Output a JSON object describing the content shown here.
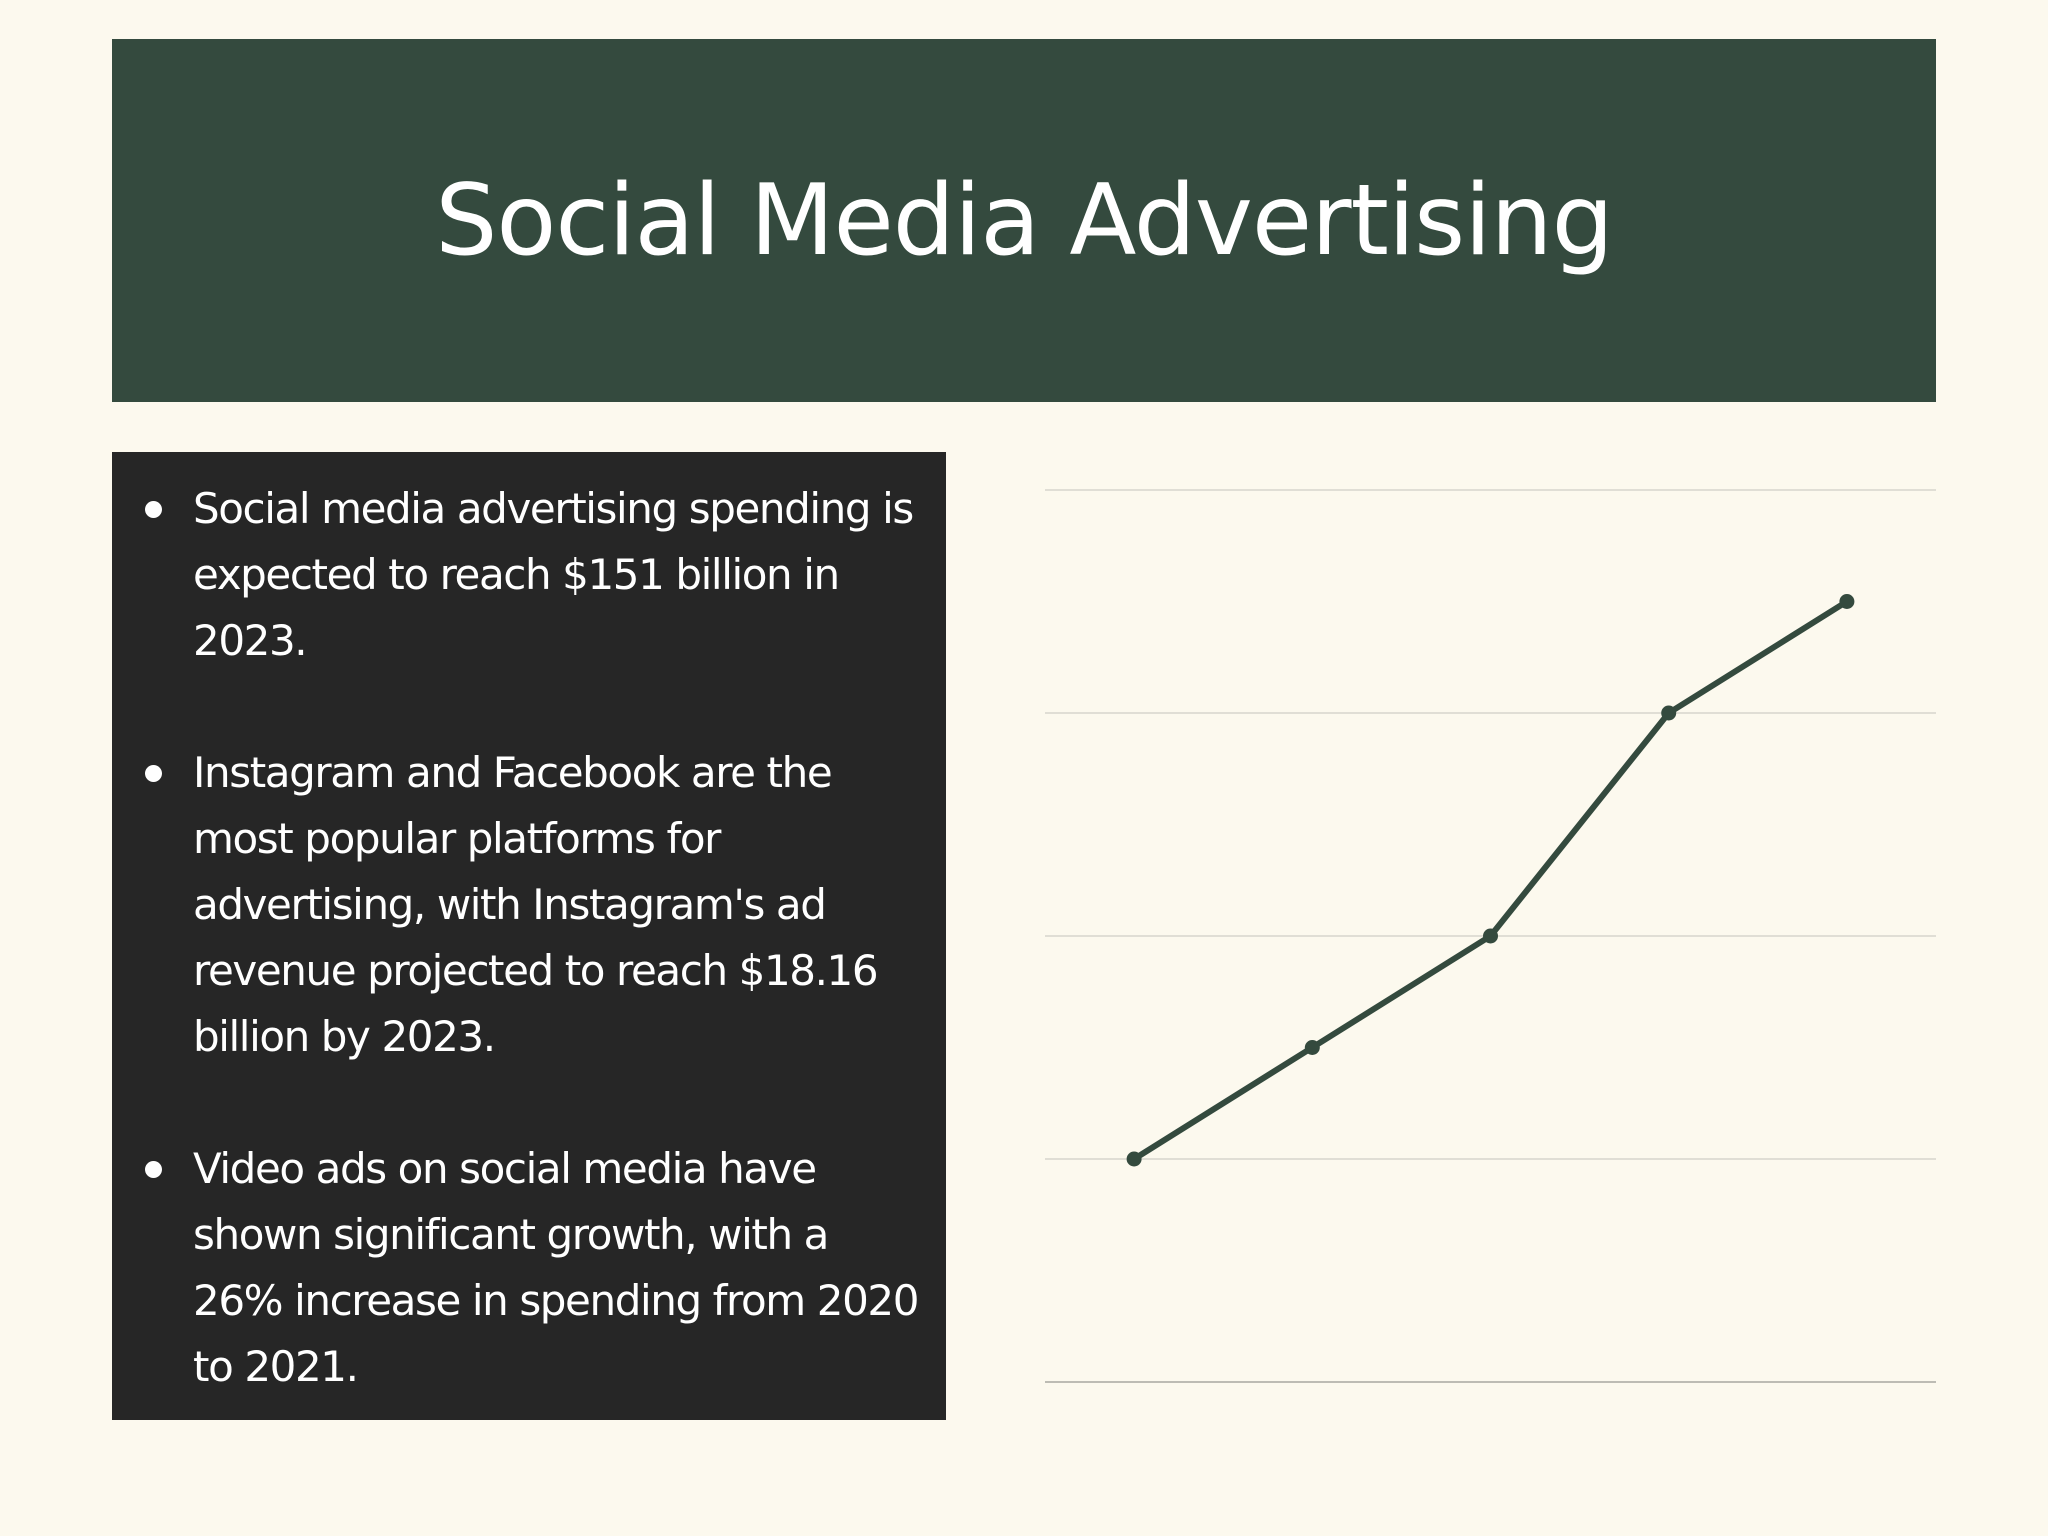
{
  "slide": {
    "title": "Social Media Advertising",
    "bullets": [
      "Social media advertising spending is expected to reach $151 billion in 2023.",
      "Instagram and Facebook are the most popular platforms for advertising, with Instagram's ad revenue projected to reach $18.16 billion by 2023.",
      "Video ads on social media have shown significant growth, with a 26% increase in spending from 2020 to 2021."
    ]
  },
  "colors": {
    "background": "#fcf9ee",
    "title_banner": "#344a3e",
    "text_panel": "#262626",
    "series_line": "#344a3e",
    "gridline": "#cfcfc6",
    "baseline": "#a8a8a0"
  },
  "chart_data": {
    "type": "line",
    "x": [
      1,
      2,
      3,
      4,
      5
    ],
    "series": [
      {
        "values": [
          1,
          1.5,
          2,
          3,
          3.5
        ]
      }
    ],
    "ylim": [
      0,
      4
    ],
    "grid": true,
    "legend": "none"
  }
}
